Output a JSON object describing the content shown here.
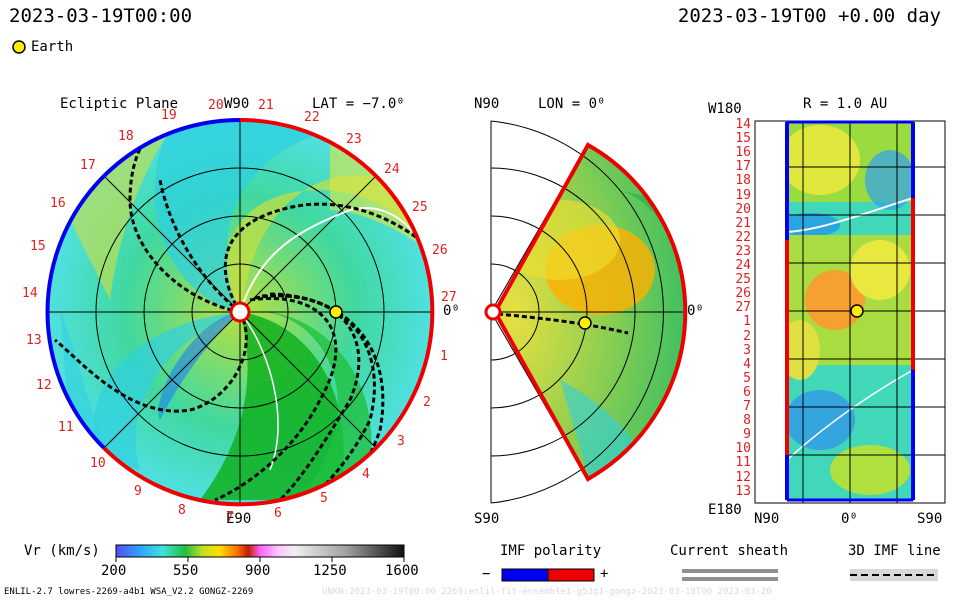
{
  "header": {
    "datetime_left": "2023-03-19T00:00",
    "datetime_right": "2023-03-19T00 +0.00 day"
  },
  "legend": {
    "earth_label": "Earth",
    "earth_color": "#ffee00"
  },
  "panels": {
    "ecliptic": {
      "title": "Ecliptic Plane",
      "top_label": "W90",
      "bottom_label": "E90",
      "right_label": "0⁰",
      "lat_label": "LAT = −7.0⁰",
      "sector_numbers": [
        "20",
        "21",
        "22",
        "23",
        "24",
        "25",
        "26",
        "27",
        "1",
        "2",
        "3",
        "4",
        "5",
        "6",
        "7",
        "8",
        "9",
        "10",
        "11",
        "12",
        "13",
        "14",
        "15",
        "16",
        "17",
        "18",
        "19"
      ]
    },
    "meridional": {
      "top_label": "N90",
      "bottom_label": "S90",
      "right_label": "0⁰",
      "lon_label": "LON = 0⁰"
    },
    "radial": {
      "title": "R = 1.0 AU",
      "top_left_label": "W180",
      "bottom_left_label": "E180",
      "x_labels": [
        "N90",
        "0⁰",
        "S90"
      ],
      "y_labels": [
        "14",
        "15",
        "16",
        "17",
        "18",
        "19",
        "20",
        "21",
        "22",
        "23",
        "24",
        "25",
        "26",
        "27",
        "1",
        "2",
        "3",
        "4",
        "5",
        "6",
        "7",
        "8",
        "9",
        "10",
        "11",
        "12",
        "13"
      ]
    }
  },
  "colorbar": {
    "label": "Vr (km/s)",
    "ticks": [
      "200",
      "550",
      "900",
      "1250",
      "1600"
    ]
  },
  "imf_polarity": {
    "label": "IMF polarity",
    "minus": "−",
    "plus": "+",
    "neg_color": "#0000ee",
    "pos_color": "#ee0000"
  },
  "current_sheath": {
    "label": "Current sheath"
  },
  "imf_line": {
    "label": "3D IMF line"
  },
  "footer": {
    "left": "ENLIL-2.7 lowres-2269-a4b1 WSA_V2.2 GONGZ-2269",
    "right": "UNKN:2023-03-19T00:00 2269:enlil-fit-ensemble1-g53q1-gongz-2023-03-18T00 2023-03-20"
  }
}
